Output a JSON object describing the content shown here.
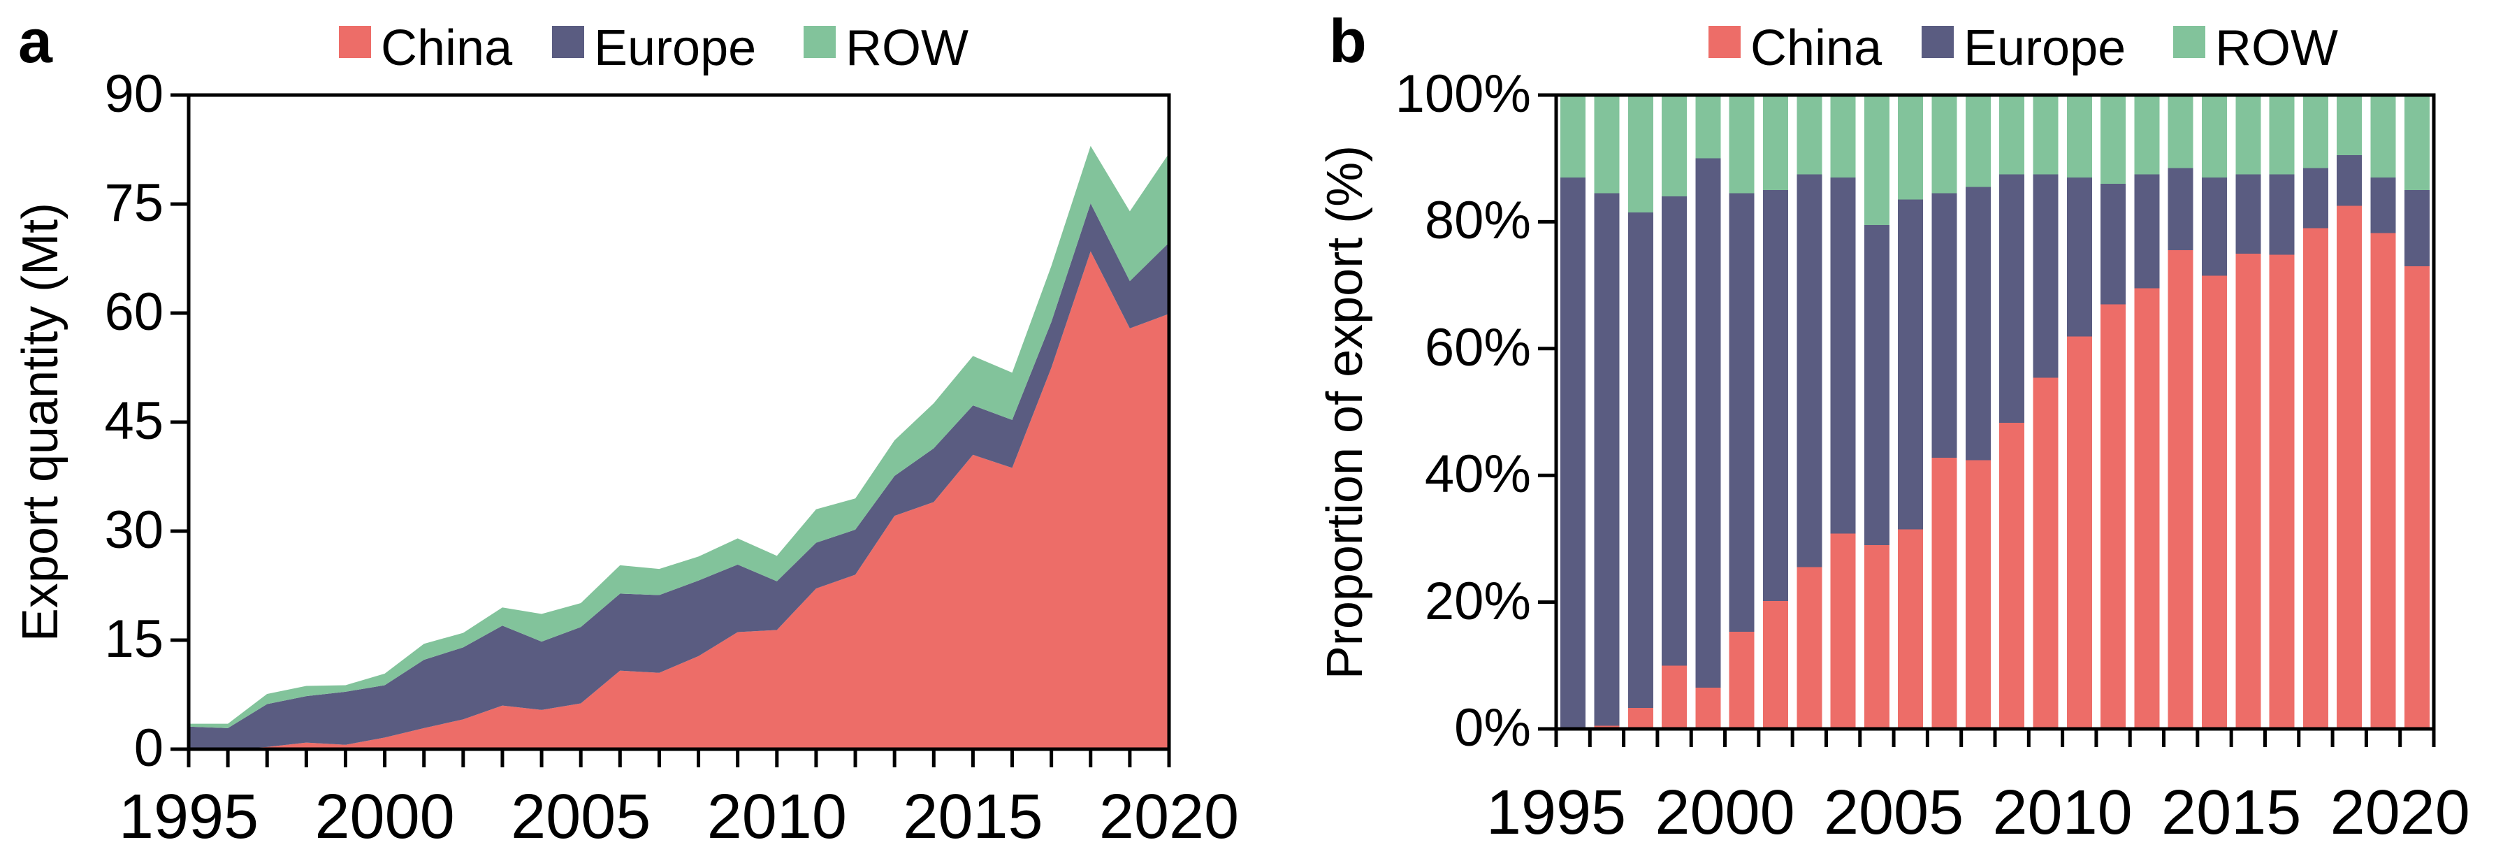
{
  "figure": {
    "colors": {
      "china": "#ED6D68",
      "europe": "#5A5C81",
      "row": "#82C39B",
      "axis": "#000000",
      "background": "#FFFFFF"
    },
    "panel_a": {
      "panel_label": "a",
      "y_axis_title": "Export quantity (Mt)",
      "y_tick_labels": [
        "0",
        "15",
        "30",
        "45",
        "60",
        "75",
        "90"
      ],
      "x_tick_labels": [
        "1995",
        "2000",
        "2005",
        "2010",
        "2015",
        "2020"
      ],
      "legend": [
        "China",
        "Europe",
        "ROW"
      ]
    },
    "panel_b": {
      "panel_label": "b",
      "y_axis_title": "Proportion of export (%)",
      "y_tick_labels": [
        "0%",
        "20%",
        "40%",
        "60%",
        "80%",
        "100%"
      ],
      "x_tick_labels": [
        "1995",
        "2000",
        "2005",
        "2010",
        "2015",
        "2020"
      ],
      "legend": [
        "China",
        "Europe",
        "ROW"
      ]
    }
  },
  "chart_data": [
    {
      "id": "a",
      "type": "area",
      "stacked": true,
      "title": "",
      "xlabel": "",
      "ylabel": "Export quantity (Mt)",
      "ylim": [
        0,
        90
      ],
      "yticks": [
        0,
        15,
        30,
        45,
        60,
        75,
        90
      ],
      "x": [
        1995,
        1996,
        1997,
        1998,
        1999,
        2000,
        2001,
        2002,
        2003,
        2004,
        2005,
        2006,
        2007,
        2008,
        2009,
        2010,
        2011,
        2012,
        2013,
        2014,
        2015,
        2016,
        2017,
        2018,
        2019,
        2020
      ],
      "x_labeled": [
        1995,
        2000,
        2005,
        2010,
        2015,
        2020
      ],
      "legend_position": "top",
      "grid": false,
      "series": [
        {
          "name": "China",
          "values": [
            0,
            0,
            0.3,
            0.9,
            0.6,
            1.6,
            2.9,
            4.1,
            6.0,
            5.4,
            6.3,
            10.8,
            10.5,
            12.8,
            16.1,
            16.4,
            22.1,
            24.0,
            32.1,
            34.0,
            40.5,
            38.7,
            52.5,
            68.5,
            57.9,
            59.9
          ]
        },
        {
          "name": "Europe",
          "values": [
            3.1,
            2.9,
            5.9,
            6.4,
            7.3,
            7.2,
            9.4,
            9.9,
            11.0,
            9.4,
            10.5,
            10.6,
            10.7,
            10.4,
            9.3,
            6.7,
            6.3,
            6.2,
            5.5,
            7.4,
            6.8,
            6.6,
            6.3,
            6.6,
            6.5,
            9.8
          ]
        },
        {
          "name": "ROW",
          "values": [
            0.4,
            0.6,
            1.4,
            1.4,
            0.9,
            1.6,
            2.2,
            2.0,
            2.5,
            3.8,
            3.3,
            3.9,
            3.6,
            3.3,
            3.6,
            3.5,
            4.6,
            4.3,
            4.9,
            6.2,
            6.8,
            6.5,
            7.7,
            7.9,
            9.6,
            12.3
          ]
        }
      ]
    },
    {
      "id": "b",
      "type": "bar",
      "stacked": true,
      "normalized_percent": true,
      "title": "",
      "xlabel": "",
      "ylabel": "Proportion of export (%)",
      "ylim": [
        0,
        100
      ],
      "yticks": [
        0,
        20,
        40,
        60,
        80,
        100
      ],
      "x": [
        1995,
        1996,
        1997,
        1998,
        1999,
        2000,
        2001,
        2002,
        2003,
        2004,
        2005,
        2006,
        2007,
        2008,
        2009,
        2010,
        2011,
        2012,
        2013,
        2014,
        2015,
        2016,
        2017,
        2018,
        2019,
        2020
      ],
      "x_labeled": [
        1995,
        2000,
        2005,
        2010,
        2015,
        2020
      ],
      "legend_position": "top",
      "grid": false,
      "series": [
        {
          "name": "China",
          "values": [
            0,
            0.5,
            3.3,
            10,
            6.5,
            15.3,
            20.2,
            25.5,
            30.8,
            29,
            31.5,
            42.8,
            42.4,
            48.3,
            55.4,
            61.9,
            67,
            69.5,
            75.5,
            71.5,
            75,
            74.8,
            79,
            82.5,
            78.2,
            73
          ]
        },
        {
          "name": "Europe",
          "values": [
            87,
            84,
            78.2,
            74,
            83.5,
            69.2,
            64.8,
            62,
            56.2,
            50.5,
            52,
            41.7,
            43.1,
            39.2,
            32.1,
            25.1,
            19,
            18,
            13,
            15.5,
            12.5,
            12.7,
            9.5,
            8,
            8.8,
            12
          ]
        },
        {
          "name": "ROW",
          "values": [
            13,
            15.5,
            18.5,
            16,
            10,
            15.5,
            15,
            12.5,
            13,
            20.5,
            16.5,
            15.5,
            14.5,
            12.5,
            12.5,
            13,
            14,
            12.5,
            11.5,
            13,
            12.5,
            12.5,
            11.5,
            9.5,
            13,
            15
          ]
        }
      ]
    }
  ]
}
